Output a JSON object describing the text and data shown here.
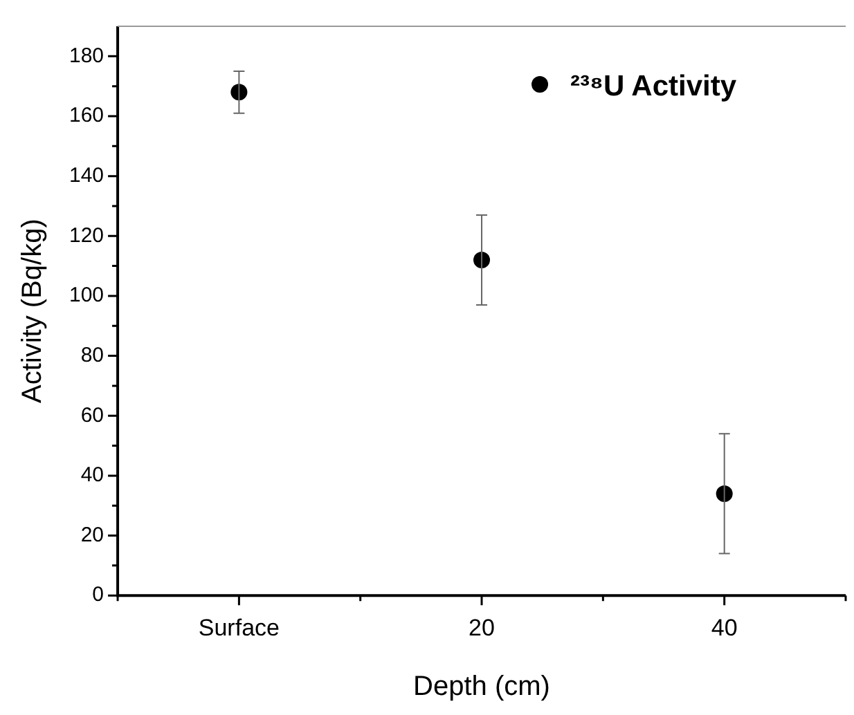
{
  "chart_data": {
    "type": "scatter",
    "xlabel": "Depth (cm)",
    "ylabel": "Activity (Bq/kg)",
    "categories": [
      "Surface",
      "20",
      "40"
    ],
    "series": [
      {
        "name": "²³⁸U Activity",
        "color": "#000000",
        "values": [
          168,
          112,
          34
        ],
        "errors": [
          7,
          15,
          20
        ]
      }
    ],
    "ylim": [
      0,
      190
    ],
    "yticks": [
      0,
      20,
      40,
      60,
      80,
      100,
      120,
      140,
      160,
      180
    ],
    "grid": false,
    "legend": "top right",
    "marker": "circle"
  }
}
